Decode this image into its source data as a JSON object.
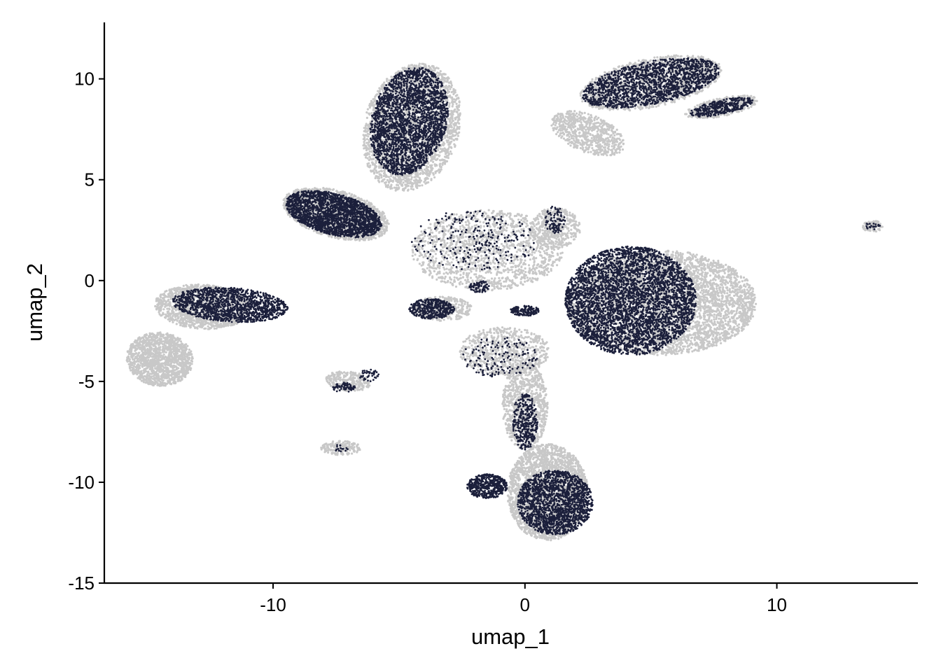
{
  "chart_data": {
    "type": "scatter",
    "xlabel": "umap_1",
    "ylabel": "umap_2",
    "xlim": [
      -16.7,
      15.6
    ],
    "ylim": [
      -15.0,
      12.8
    ],
    "x_ticks": [
      -10,
      0,
      10
    ],
    "x_tick_labels": [
      "-10",
      "0",
      "10"
    ],
    "y_ticks": [
      -15,
      -10,
      -5,
      0,
      5,
      10
    ],
    "y_tick_labels": [
      "-15",
      "-10",
      "-5",
      "0",
      "5",
      "10"
    ],
    "grid": false,
    "legend": "none",
    "colors": {
      "background_cells": "#c8c8c8",
      "highlighted_cells": "#1b1f3b"
    },
    "series": [
      {
        "role": "background",
        "clusters": [
          {
            "cx": -4.5,
            "cy": 7.6,
            "rx": 1.9,
            "ry": 3.2,
            "rot": -10,
            "n": 2600
          },
          {
            "cx": -7.5,
            "cy": 3.3,
            "rx": 2.2,
            "ry": 1.15,
            "rot": -20,
            "n": 1800
          },
          {
            "cx": -12.8,
            "cy": -1.3,
            "rx": 1.9,
            "ry": 1.1,
            "rot": -5,
            "n": 1300
          },
          {
            "cx": -14.5,
            "cy": -3.9,
            "rx": 1.3,
            "ry": 1.35,
            "rot": 40,
            "n": 1400
          },
          {
            "cx": 5.4,
            "cy": -1.1,
            "rx": 3.8,
            "ry": 2.6,
            "rot": 0,
            "n": 4500
          },
          {
            "cx": 5.0,
            "cy": 9.8,
            "rx": 2.9,
            "ry": 1.2,
            "rot": 15,
            "n": 1600
          },
          {
            "cx": 7.8,
            "cy": 8.6,
            "rx": 1.5,
            "ry": 0.45,
            "rot": 15,
            "n": 400
          },
          {
            "cx": 2.5,
            "cy": 7.3,
            "rx": 1.6,
            "ry": 0.9,
            "rot": -30,
            "n": 700
          },
          {
            "cx": 0.9,
            "cy": -10.5,
            "rx": 1.6,
            "ry": 2.4,
            "rot": 0,
            "n": 2600
          },
          {
            "cx": 0.0,
            "cy": -6.2,
            "rx": 0.9,
            "ry": 2.2,
            "rot": 0,
            "n": 900
          },
          {
            "cx": -3.3,
            "cy": -1.4,
            "rx": 1.2,
            "ry": 0.6,
            "rot": 0,
            "n": 350
          },
          {
            "cx": -7.0,
            "cy": -5.0,
            "rx": 0.9,
            "ry": 0.5,
            "rot": -10,
            "n": 250
          },
          {
            "cx": -7.3,
            "cy": -8.3,
            "rx": 0.8,
            "ry": 0.35,
            "rot": 0,
            "n": 150
          },
          {
            "cx": 13.8,
            "cy": 2.7,
            "rx": 0.4,
            "ry": 0.3,
            "rot": 0,
            "n": 90
          },
          {
            "cx": -1.5,
            "cy": 1.5,
            "rx": 3.0,
            "ry": 2.0,
            "rot": 0,
            "n": 1500
          },
          {
            "cx": 1.2,
            "cy": 2.6,
            "rx": 1.0,
            "ry": 1.0,
            "rot": 0,
            "n": 400
          },
          {
            "cx": -0.8,
            "cy": -3.5,
            "rx": 1.8,
            "ry": 1.2,
            "rot": 0,
            "n": 700
          }
        ]
      },
      {
        "role": "highlighted",
        "clusters": [
          {
            "cx": -4.6,
            "cy": 7.9,
            "rx": 1.5,
            "ry": 2.7,
            "rot": -10,
            "n": 2600
          },
          {
            "cx": -7.6,
            "cy": 3.3,
            "rx": 2.0,
            "ry": 1.0,
            "rot": -20,
            "n": 2200
          },
          {
            "cx": -11.7,
            "cy": -1.2,
            "rx": 2.3,
            "ry": 0.85,
            "rot": -5,
            "n": 1400
          },
          {
            "cx": 4.2,
            "cy": -1.0,
            "rx": 2.6,
            "ry": 2.7,
            "rot": 0,
            "n": 4200
          },
          {
            "cx": 5.0,
            "cy": 9.8,
            "rx": 2.8,
            "ry": 1.05,
            "rot": 15,
            "n": 1700
          },
          {
            "cx": 7.8,
            "cy": 8.6,
            "rx": 1.3,
            "ry": 0.35,
            "rot": 15,
            "n": 350
          },
          {
            "cx": 1.2,
            "cy": -11.0,
            "rx": 1.5,
            "ry": 1.6,
            "rot": 0,
            "n": 1800
          },
          {
            "cx": -1.5,
            "cy": -10.2,
            "rx": 0.8,
            "ry": 0.6,
            "rot": 0,
            "n": 500
          },
          {
            "cx": 0.0,
            "cy": -7.0,
            "rx": 0.5,
            "ry": 1.4,
            "rot": 0,
            "n": 350
          },
          {
            "cx": -3.7,
            "cy": -1.4,
            "rx": 0.9,
            "ry": 0.5,
            "rot": 0,
            "n": 400
          },
          {
            "cx": -7.2,
            "cy": -5.3,
            "rx": 0.45,
            "ry": 0.25,
            "rot": 0,
            "n": 60
          },
          {
            "cx": -6.2,
            "cy": -4.7,
            "rx": 0.4,
            "ry": 0.3,
            "rot": 0,
            "n": 40
          },
          {
            "cx": -7.3,
            "cy": -8.3,
            "rx": 0.3,
            "ry": 0.2,
            "rot": 0,
            "n": 15
          },
          {
            "cx": 13.8,
            "cy": 2.7,
            "rx": 0.3,
            "ry": 0.2,
            "rot": 0,
            "n": 20
          },
          {
            "cx": 0.0,
            "cy": -1.5,
            "rx": 0.6,
            "ry": 0.25,
            "rot": 0,
            "n": 150
          },
          {
            "cx": -1.8,
            "cy": -0.3,
            "rx": 0.4,
            "ry": 0.3,
            "rot": 0,
            "n": 80
          },
          {
            "cx": 1.2,
            "cy": 3.0,
            "rx": 0.4,
            "ry": 0.7,
            "rot": 0,
            "n": 90
          },
          {
            "cx": -2.0,
            "cy": 2.0,
            "rx": 2.5,
            "ry": 1.5,
            "rot": 0,
            "n": 250
          },
          {
            "cx": -1.0,
            "cy": -3.8,
            "rx": 1.5,
            "ry": 1.0,
            "rot": 0,
            "n": 150
          }
        ]
      }
    ]
  }
}
